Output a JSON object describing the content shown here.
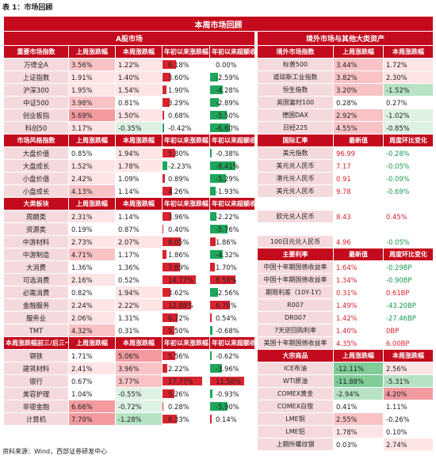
{
  "caption": "表 1：市场回顾",
  "footer": "资料来源：Wind，西部证券研发中心",
  "title": "本周市场回顾",
  "left_header": "A股市场",
  "right_header": "境外市场与其他大类资产",
  "colors": {
    "red": "#c40a1d",
    "pink": "#f5dadd",
    "light_red": "#f6c6c9",
    "light_green": "#c9ecd4",
    "bar_red": "#d8232f",
    "bar_green": "#1fa65b"
  },
  "left_sections": [
    {
      "headers": [
        "重要市场指数",
        "上周涨跌幅",
        "本周涨跌幅",
        "年初以来涨跌幅",
        "年初以来超额收益"
      ],
      "rows": [
        {
          "name": "万得全A",
          "lw": "3.56%",
          "tw": "1.22%",
          "ytd": "6.18%",
          "ytdv": 6.18,
          "ex": "0.00%",
          "exv": 0.0,
          "lwc": "r2",
          "twc": "r1"
        },
        {
          "name": "上证指数",
          "lw": "1.91%",
          "tw": "1.40%",
          "ytd": "3.60%",
          "ytdv": 3.6,
          "ex": "-2.59%",
          "exv": -2.59,
          "lwc": "r1",
          "twc": "r1"
        },
        {
          "name": "沪深300",
          "lw": "1.95%",
          "tw": "1.54%",
          "ytd": "1.90%",
          "ytdv": 1.9,
          "ex": "-4.28%",
          "exv": -4.28,
          "lwc": "r1",
          "twc": "r1"
        },
        {
          "name": "中证500",
          "lw": "3.98%",
          "tw": "0.81%",
          "ytd": "3.29%",
          "ytdv": 3.29,
          "ex": "-2.89%",
          "exv": -2.89,
          "lwc": "r2",
          "twc": "r0"
        },
        {
          "name": "创业板指",
          "lw": "5.69%",
          "tw": "1.50%",
          "ytd": "0.68%",
          "ytdv": 0.68,
          "ex": "-5.50%",
          "exv": -5.5,
          "lwc": "r3",
          "twc": "r1"
        },
        {
          "name": "科创50",
          "lw": "3.17%",
          "tw": "-0.35%",
          "ytd": "-0.42%",
          "ytdv": -0.42,
          "ex": "-6.60%",
          "exv": -6.6,
          "lwc": "r1",
          "twc": "g1"
        }
      ]
    },
    {
      "headers": [
        "市场风格指数",
        "上周涨跌幅",
        "本周涨跌幅",
        "年初以来涨跌幅",
        "年初以来超额收益"
      ],
      "rows": [
        {
          "name": "大盘价值",
          "lw": "0.85%",
          "tw": "1.94%",
          "ytd": "5.80%",
          "ytdv": 5.8,
          "ex": "-0.38%",
          "exv": -0.38,
          "lwc": "r0",
          "twc": "r1"
        },
        {
          "name": "大盘成长",
          "lw": "1.52%",
          "tw": "1.78%",
          "ytd": "-2.23%",
          "ytdv": -2.23,
          "ex": "-8.41%",
          "exv": -8.41,
          "lwc": "r1",
          "twc": "r1"
        },
        {
          "name": "小盘价值",
          "lw": "2.42%",
          "tw": "1.09%",
          "ytd": "0.89%",
          "ytdv": 0.89,
          "ex": "-5.29%",
          "exv": -5.29,
          "lwc": "r1",
          "twc": "r0"
        },
        {
          "name": "小盘成长",
          "lw": "4.13%",
          "tw": "1.14%",
          "ytd": "4.26%",
          "ytdv": 4.26,
          "ex": "-1.93%",
          "exv": -1.93,
          "lwc": "r2",
          "twc": "r0"
        }
      ]
    },
    {
      "headers": [
        "大类板块",
        "上周涨跌幅",
        "本周涨跌幅",
        "年初以来涨跌幅",
        "年初以来超额收益"
      ],
      "rows": [
        {
          "name": "周期类",
          "lw": "2.31%",
          "tw": "1.14%",
          "ytd": "3.96%",
          "ytdv": 3.96,
          "ex": "-2.22%",
          "exv": -2.22,
          "lwc": "r1",
          "twc": "r0"
        },
        {
          "name": "资源类",
          "lw": "0.19%",
          "tw": "0.87%",
          "ytd": "0.40%",
          "ytdv": 0.4,
          "ex": "-5.76%",
          "exv": -5.76,
          "lwc": "r0",
          "twc": "r0"
        },
        {
          "name": "中游材料",
          "lw": "2.73%",
          "tw": "2.07%",
          "ytd": "8.05%",
          "ytdv": 8.05,
          "ex": "1.86%",
          "exv": 1.86,
          "lwc": "r1",
          "twc": "r1"
        },
        {
          "name": "中游制造",
          "lw": "4.71%",
          "tw": "1.17%",
          "ytd": "1.86%",
          "ytdv": 1.86,
          "ex": "-4.32%",
          "exv": -4.32,
          "lwc": "r2",
          "twc": "r0"
        },
        {
          "name": "大消费",
          "lw": "1.36%",
          "tw": "1.36%",
          "ytd": "7.89%",
          "ytdv": 7.89,
          "ex": "1.70%",
          "exv": 1.7,
          "lwc": "r0",
          "twc": "r0"
        },
        {
          "name": "可选消费",
          "lw": "2.16%",
          "tw": "0.52%",
          "ytd": "14.77%",
          "ytdv": 14.77,
          "ex": "8.58%",
          "exv": 8.58,
          "lwc": "r1",
          "twc": "r0"
        },
        {
          "name": "必需消费",
          "lw": "0.82%",
          "tw": "1.94%",
          "ytd": "3.62%",
          "ytdv": 3.62,
          "ex": "-2.56%",
          "exv": -2.56,
          "lwc": "r0",
          "twc": "r1"
        },
        {
          "name": "金融服务",
          "lw": "2.24%",
          "tw": "2.22%",
          "ytd": "12.88%",
          "ytdv": 12.88,
          "ex": "6.70%",
          "exv": 6.7,
          "lwc": "r1",
          "twc": "r1"
        },
        {
          "name": "服务业",
          "lw": "2.06%",
          "tw": "1.31%",
          "ytd": "6.72%",
          "ytdv": 6.72,
          "ex": "0.54%",
          "exv": 0.54,
          "lwc": "r1",
          "twc": "r0"
        },
        {
          "name": "TMT",
          "lw": "4.32%",
          "tw": "0.31%",
          "ytd": "5.50%",
          "ytdv": 5.5,
          "ex": "-0.68%",
          "exv": -0.68,
          "lwc": "r2",
          "twc": "r0"
        }
      ]
    },
    {
      "headers": [
        "本周涨跌幅前三/后三一级行业",
        "上周涨跌幅",
        "本周涨跌幅",
        "年初以来涨跌幅",
        "年初以来超额收益"
      ],
      "rows": [
        {
          "name": "钢铁",
          "lw": "1.71%",
          "tw": "5.06%",
          "ytd": "5.56%",
          "ytdv": 5.56,
          "ex": "-0.62%",
          "exv": -0.62,
          "lwc": "r0",
          "twc": "r3"
        },
        {
          "name": "建筑材料",
          "lw": "2.41%",
          "tw": "3.96%",
          "ytd": "2.22%",
          "ytdv": 2.22,
          "ex": "-3.96%",
          "exv": -3.96,
          "lwc": "r1",
          "twc": "r2"
        },
        {
          "name": "银行",
          "lw": "0.67%",
          "tw": "3.77%",
          "ytd": "17.77%",
          "ytdv": 17.77,
          "ex": "11.58%",
          "exv": 11.58,
          "lwc": "r0",
          "twc": "r2"
        },
        {
          "name": "美容护理",
          "lw": "1.04%",
          "tw": "-0.55%",
          "ytd": "5.26%",
          "ytdv": 5.26,
          "ex": "-0.93%",
          "exv": -0.93,
          "lwc": "r0",
          "twc": "g1"
        },
        {
          "name": "非银金融",
          "lw": "6.66%",
          "tw": "-0.72%",
          "ytd": "0.28%",
          "ytdv": 0.28,
          "ex": "-5.90%",
          "exv": -5.9,
          "lwc": "r3",
          "twc": "g1"
        },
        {
          "name": "计算机",
          "lw": "7.70%",
          "tw": "-1.28%",
          "ytd": "6.33%",
          "ytdv": 6.33,
          "ex": "0.14%",
          "exv": 0.14,
          "lwc": "r3",
          "twc": "g2"
        }
      ]
    }
  ],
  "right_sections": [
    {
      "headers": [
        "境外市场指数",
        "上周涨跌幅",
        "本周涨跌幅"
      ],
      "rows": [
        {
          "name": "标普500",
          "a": "3.44%",
          "b": "1.72%",
          "ac": "r2",
          "bc": "r1"
        },
        {
          "name": "道琼斯工业指数",
          "a": "3.82%",
          "b": "2.30%",
          "ac": "r2",
          "bc": "r1"
        },
        {
          "name": "恒生指数",
          "a": "3.20%",
          "b": "-1.52%",
          "ac": "r2",
          "bc": "g2"
        },
        {
          "name": "英国富时100",
          "a": "0.28%",
          "b": "0.27%",
          "ac": "r0",
          "bc": "r0"
        },
        {
          "name": "德国DAX",
          "a": "2.92%",
          "b": "-1.02%",
          "ac": "r2",
          "bc": "g1"
        },
        {
          "name": "日经225",
          "a": "4.55%",
          "b": "-0.85%",
          "ac": "r2",
          "bc": "g1"
        }
      ]
    },
    {
      "headers": [
        "国际汇率",
        "最新值",
        "周度环比变化"
      ],
      "rows": [
        {
          "name": "美元指数",
          "a": "96.99",
          "b": "-0.28%",
          "ac": "tr",
          "bc": "tg"
        },
        {
          "name": "美元兑人民币",
          "a": "7.17",
          "b": "-0.05%",
          "ac": "tr",
          "bc": "tg"
        },
        {
          "name": "港元兑人民币",
          "a": "0.91",
          "b": "-0.09%",
          "ac": "tr",
          "bc": "tg"
        },
        {
          "name": "美元兑人民币",
          "a": "9.78",
          "b": "-0.69%",
          "ac": "tr",
          "bc": "tg"
        },
        {
          "name": "",
          "a": "",
          "b": "",
          "ac": "",
          "bc": ""
        },
        {
          "name": "欧元兑人民币",
          "a": "8.43",
          "b": "0.45%",
          "ac": "tr",
          "bc": "tr"
        },
        {
          "name": "",
          "a": "",
          "b": "",
          "ac": "",
          "bc": ""
        },
        {
          "name": "100日元兑人民币",
          "a": "4.96",
          "b": "-0.05%",
          "ac": "tr",
          "bc": "tg"
        }
      ]
    },
    {
      "headers": [
        "主要利率",
        "最新值",
        "周度环比变化"
      ],
      "rows": [
        {
          "name": "中国十年期国债收益率",
          "a": "1.64%",
          "b": "-0.29BP",
          "ac": "tr",
          "bc": "tg"
        },
        {
          "name": "中国十年期国债收益率",
          "a": "1.34%",
          "b": "-0.90BP",
          "ac": "tr",
          "bc": "tg"
        },
        {
          "name": "期限利差（10Y-1Y）",
          "a": "0.31%",
          "b": "0.61BP",
          "ac": "tr",
          "bc": "tr"
        },
        {
          "name": "R007",
          "a": "1.49%",
          "b": "-43.20BP",
          "ac": "tr",
          "bc": "tg"
        },
        {
          "name": "DR007",
          "a": "1.42%",
          "b": "-27.46BP",
          "ac": "tr",
          "bc": "tg"
        },
        {
          "name": "7天逆回购利率",
          "a": "1.40%",
          "b": "0BP",
          "ac": "tr",
          "bc": "tr"
        },
        {
          "name": "美国十年期国债收益率",
          "a": "4.35%",
          "b": "6.00BP",
          "ac": "tr",
          "bc": "tr"
        }
      ]
    },
    {
      "headers": [
        "大宗商品",
        "上周涨跌幅",
        "本周涨跌幅"
      ],
      "rows": [
        {
          "name": "ICE布油",
          "a": "-12.11%",
          "b": "2.56%",
          "ac": "g3",
          "bc": "r1"
        },
        {
          "name": "WTI原油",
          "a": "-11.88%",
          "b": "-5.31%",
          "ac": "g3",
          "bc": "g2"
        },
        {
          "name": "COMEX黄金",
          "a": "-2.94%",
          "b": "4.20%",
          "ac": "g2",
          "bc": "r3"
        },
        {
          "name": "COMEX白银",
          "a": "0.41%",
          "b": "1.11%",
          "ac": "r0",
          "bc": "r0"
        },
        {
          "name": "LME铜",
          "a": "2.55%",
          "b": "-0.26%",
          "ac": "r2",
          "bc": "g0"
        },
        {
          "name": "LME铝",
          "a": "1.78%",
          "b": "0.10%",
          "ac": "r1",
          "bc": "r0"
        },
        {
          "name": "上期所螺纹钢",
          "a": "0.03%",
          "b": "2.74%",
          "ac": "r0",
          "bc": "r1"
        }
      ]
    }
  ]
}
